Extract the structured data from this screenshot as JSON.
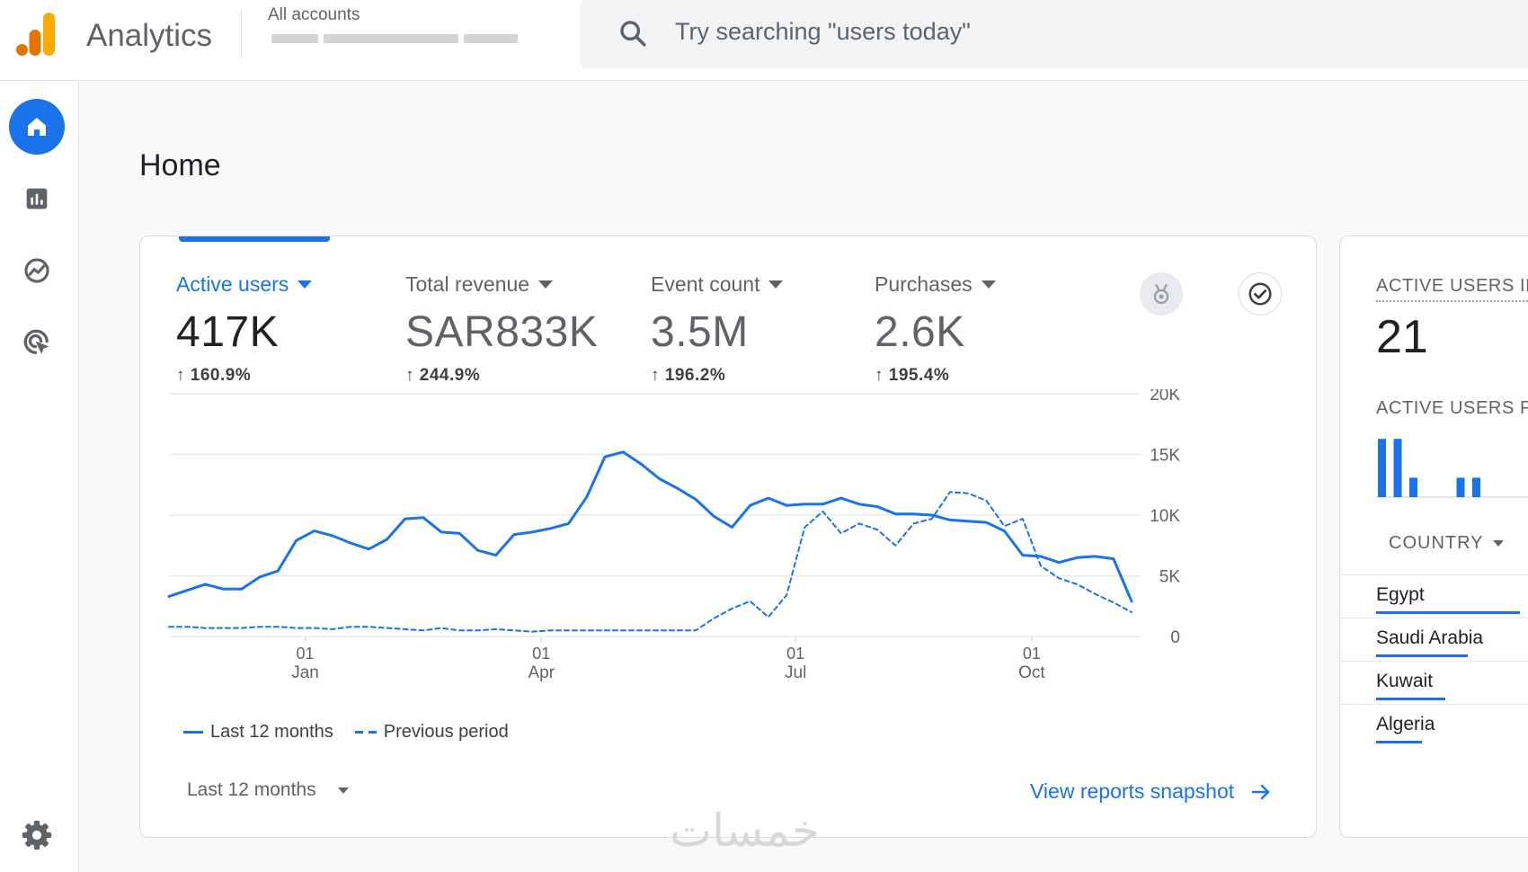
{
  "app": {
    "title": "Analytics",
    "account_name": "All accounts"
  },
  "search": {
    "placeholder": "Try searching \"users today\""
  },
  "nav": {
    "items": [
      "home-icon",
      "reports-icon",
      "explore-icon",
      "advertising-icon",
      "settings-icon"
    ],
    "active": "home"
  },
  "page": {
    "title": "Home"
  },
  "metrics": [
    {
      "label": "Active users",
      "value": "417K",
      "change": "160.9%"
    },
    {
      "label": "Total revenue",
      "value": "SAR833K",
      "change": "244.9%"
    },
    {
      "label": "Event count",
      "value": "3.5M",
      "change": "196.2%"
    },
    {
      "label": "Purchases",
      "value": "2.6K",
      "change": "195.4%"
    }
  ],
  "chart_data": {
    "type": "line",
    "x_ticks": [
      {
        "day": "01",
        "month": "Jan",
        "week": 7.5
      },
      {
        "day": "01",
        "month": "Apr",
        "week": 20.5
      },
      {
        "day": "01",
        "month": "Jul",
        "week": 34.5
      },
      {
        "day": "01",
        "month": "Oct",
        "week": 47.5
      }
    ],
    "y_ticks": [
      "20K",
      "15K",
      "10K",
      "5K",
      "0"
    ],
    "ylim": [
      0,
      20000
    ],
    "series": [
      {
        "name": "Last 12 months",
        "style": "solid",
        "values": [
          3300,
          3800,
          4300,
          3900,
          3900,
          4900,
          5400,
          7900,
          8700,
          8300,
          7700,
          7200,
          8000,
          9700,
          9800,
          8600,
          8500,
          7100,
          6700,
          8400,
          8600,
          8900,
          9300,
          11500,
          14800,
          15200,
          14200,
          13000,
          12200,
          11300,
          9900,
          9000,
          10800,
          11400,
          10800,
          10900,
          10900,
          11400,
          10900,
          10700,
          10100,
          10100,
          10000,
          9600,
          9500,
          9400,
          8700,
          6700,
          6600,
          6100,
          6500,
          6600,
          6400,
          2900
        ]
      },
      {
        "name": "Previous period",
        "style": "dashed",
        "values": [
          800,
          800,
          700,
          700,
          700,
          800,
          800,
          700,
          700,
          600,
          800,
          800,
          700,
          600,
          500,
          700,
          500,
          500,
          600,
          500,
          400,
          500,
          500,
          500,
          500,
          500,
          500,
          500,
          500,
          500,
          1500,
          2300,
          2900,
          1600,
          3400,
          9000,
          10300,
          8500,
          9300,
          8800,
          7500,
          9300,
          9700,
          11900,
          11800,
          11200,
          9100,
          9700,
          5800,
          4800,
          4300,
          3500,
          2800,
          2000
        ]
      }
    ],
    "grid": true,
    "legend": "bottom-left"
  },
  "legend": {
    "current": "Last 12 months",
    "previous": "Previous period"
  },
  "date_range": {
    "label": "Last 12 months"
  },
  "link": {
    "label": "View reports snapshot"
  },
  "realtime": {
    "title": "ACTIVE USERS IN",
    "value": "21",
    "subtitle": "ACTIVE USERS PE",
    "minute_bars": [
      90,
      90,
      30,
      0,
      0,
      30,
      30,
      0,
      0,
      0,
      0,
      0,
      0
    ],
    "country_header": "COUNTRY",
    "countries": [
      {
        "name": "Egypt",
        "share": 1.0
      },
      {
        "name": "Saudi Arabia",
        "share": 0.64
      },
      {
        "name": "Kuwait",
        "share": 0.48
      },
      {
        "name": "Algeria",
        "share": 0.32
      }
    ]
  },
  "colors": {
    "accent": "#1a73e8",
    "logo_orange": "#F9AB00",
    "logo_dark_orange": "#E37400"
  },
  "watermark": "خمسات"
}
